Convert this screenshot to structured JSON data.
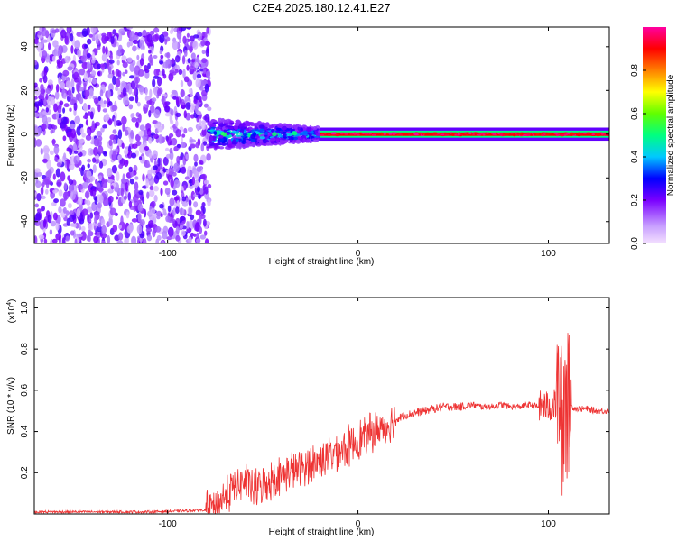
{
  "chart_data": [
    {
      "type": "heatmap",
      "title": "C2E4.2025.180.12.41.E27",
      "xlabel": "Height of straight line (km)",
      "ylabel": "Frequency (Hz)",
      "xlim": [
        -170,
        132
      ],
      "ylim": [
        -50,
        49
      ],
      "xticks": [
        -100,
        0,
        100
      ],
      "yticks": [
        40,
        20,
        0,
        -20,
        -40
      ],
      "colorbar": {
        "label": "Normalized spectral amplitude",
        "range": [
          0,
          1
        ],
        "ticks": [
          "0.0",
          "0.2",
          "0.4",
          "0.6",
          "0.8"
        ],
        "tick_values": [
          0.0,
          0.2,
          0.4,
          0.6,
          0.8
        ],
        "colors": [
          "#f4e0ff",
          "#b080ff",
          "#7a00ff",
          "#0000ff",
          "#00c8ff",
          "#00ff80",
          "#60ff00",
          "#ffff00",
          "#ff8000",
          "#ff0000",
          "#ff00a0"
        ]
      },
      "regions": [
        {
          "x_range": [
            -170,
            -78
          ],
          "y_range": [
            -50,
            49
          ],
          "description_value": "scattered noise, amplitude 0.05-0.25"
        },
        {
          "x_range": [
            -78,
            -20
          ],
          "y_range": [
            -7,
            7
          ],
          "description_value": "band amplitude 0.3-0.6"
        },
        {
          "x_range": [
            -20,
            132
          ],
          "y_range": [
            -2,
            2
          ],
          "description_value": "narrow band amplitude 0.9-1.0"
        }
      ],
      "grid": false
    },
    {
      "type": "line",
      "xlabel": "Height of straight line (km)",
      "ylabel": "SNR (10 * v/v)",
      "scale_label": "(x10",
      "scale_exp": "4",
      "scale_close": ")",
      "xlim": [
        -170,
        132
      ],
      "ylim": [
        0,
        1.05
      ],
      "xticks": [
        -100,
        0,
        100
      ],
      "yticks": [
        "0.2",
        "0.4",
        "0.6",
        "0.8",
        "1.0"
      ],
      "ytick_values": [
        0.2,
        0.4,
        0.6,
        0.8,
        1.0
      ],
      "color": "#ee3333",
      "series": [
        {
          "x": [
            -170,
            -140,
            -110,
            -90,
            -80,
            -75,
            -70,
            -65,
            -60,
            -55,
            -50,
            -45,
            -40,
            -35,
            -30,
            -25,
            -20,
            -15,
            -10,
            -5,
            0,
            5,
            10,
            15,
            20,
            25,
            30,
            35,
            40,
            45,
            50,
            55,
            60,
            65,
            70,
            75,
            80,
            85,
            90,
            95,
            100,
            104,
            106,
            108,
            110,
            112,
            115,
            120,
            125,
            132
          ],
          "y": [
            0.01,
            0.01,
            0.01,
            0.015,
            0.02,
            0.04,
            0.08,
            0.13,
            0.16,
            0.12,
            0.14,
            0.17,
            0.19,
            0.21,
            0.22,
            0.24,
            0.26,
            0.29,
            0.31,
            0.33,
            0.36,
            0.38,
            0.41,
            0.43,
            0.46,
            0.48,
            0.49,
            0.5,
            0.51,
            0.52,
            0.52,
            0.52,
            0.53,
            0.52,
            0.52,
            0.53,
            0.52,
            0.52,
            0.53,
            0.52,
            0.52,
            0.53,
            0.6,
            0.3,
            0.55,
            0.52,
            0.51,
            0.51,
            0.5,
            0.5
          ]
        }
      ],
      "grid": false
    }
  ]
}
